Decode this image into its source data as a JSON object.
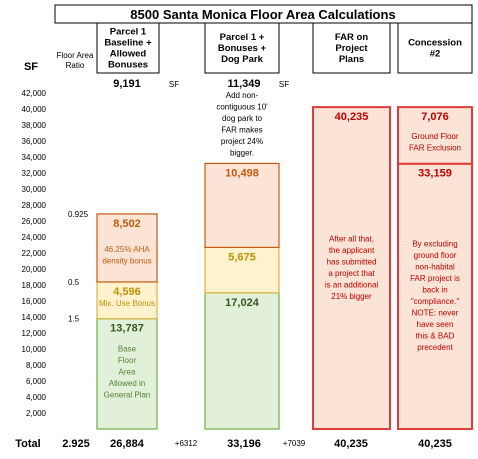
{
  "title": "8500 Santa Monica Floor Area Calculations",
  "headers": {
    "sf": "SF",
    "far_ratio": [
      "Floor Area",
      "Ratio"
    ],
    "col1": [
      "Parcel 1",
      "Baseline +",
      "Allowed",
      "Bonuses"
    ],
    "col2": [
      "Parcel 1 +",
      "Bonuses +",
      "Dog Park"
    ],
    "col3": [
      "FAR on",
      "Project",
      "Plans"
    ],
    "col4": [
      "Concession",
      "#2"
    ]
  },
  "top_values": {
    "col1": "9,191",
    "col2": "11,349",
    "unit": "SF"
  },
  "chart_data": {
    "type": "bar",
    "stacked": true,
    "ylim": [
      0,
      42000
    ],
    "yticks": [
      2000,
      4000,
      6000,
      8000,
      10000,
      12000,
      14000,
      16000,
      18000,
      20000,
      22000,
      24000,
      26000,
      28000,
      30000,
      32000,
      34000,
      36000,
      38000,
      40000,
      42000
    ],
    "ytick_labels": [
      "2,000",
      "4,000",
      "6,000",
      "8,000",
      "10,000",
      "12,000",
      "14,000",
      "16,000",
      "18,000",
      "20,000",
      "22,000",
      "24,000",
      "26,000",
      "28,000",
      "30,000",
      "32,000",
      "34,000",
      "36,000",
      "38,000",
      "40,000",
      "42,000"
    ],
    "columns": [
      {
        "id": "col1",
        "segments": [
          {
            "value": 13787,
            "label": "13,787",
            "note": [
              "Base",
              "Floor",
              "Area",
              "Allowed in",
              "General Plan"
            ],
            "fill": "#e2efd9",
            "stroke": "#70ad47",
            "label_color": "#375623",
            "note_color": "#548235"
          },
          {
            "value": 4596,
            "label": "4,596",
            "note": [
              "Mix. Use Bonus"
            ],
            "fill": "#fff2cc",
            "stroke": "#e0b43c",
            "label_color": "#bf9000",
            "note_color": "#bf9000"
          },
          {
            "value": 8502,
            "label": "8,502",
            "note": [
              "46.25% AHA",
              "density bonus"
            ],
            "fill": "#fbe4d5",
            "stroke": "#c55a11",
            "label_color": "#c55a11",
            "note_color": "#c55a11"
          }
        ]
      },
      {
        "id": "col2",
        "segments": [
          {
            "value": 17024,
            "label": "17,024",
            "fill": "#e2efd9",
            "stroke": "#70ad47",
            "label_color": "#375623"
          },
          {
            "value": 5675,
            "label": "5,675",
            "fill": "#fff2cc",
            "stroke": "#e0b43c",
            "label_color": "#bf9000"
          },
          {
            "value": 10498,
            "label": "10,498",
            "fill": "#fbe4d5",
            "stroke": "#c55a11",
            "label_color": "#c55a11"
          }
        ],
        "note_above": [
          "Add non-",
          "contiguous 10'",
          "dog park to",
          "FAR makes",
          "project 24%",
          "bigger."
        ]
      },
      {
        "id": "col3",
        "segments": [
          {
            "value": 40235,
            "label": "40,235",
            "note": [
              "After all that,",
              "the applicant",
              "has submitted",
              "a project that",
              "is an additional",
              "21% bigger"
            ],
            "fill": "#fbe4d5",
            "stroke": "#e03c3c",
            "label_color": "#c00000",
            "note_color": "#c00000"
          }
        ]
      },
      {
        "id": "col4",
        "segments": [
          {
            "value": 33159,
            "label": "33,159",
            "note": [
              "By excluding",
              "ground floor",
              "non-habital",
              "FAR project is",
              "back in",
              "\"compliance.\"",
              "NOTE: never",
              "have seen",
              "this & BAD",
              "precedent"
            ],
            "fill": "#fbe4d5",
            "stroke": "#e03c3c",
            "label_color": "#c00000",
            "note_color": "#c00000"
          },
          {
            "value": 7076,
            "label": "7,076",
            "note": [
              "Ground Floor",
              "FAR Exclusion"
            ],
            "fill": "#fbe4d5",
            "stroke": "#e03c3c",
            "label_color": "#c00000",
            "note_color": "#c00000"
          }
        ]
      }
    ],
    "far_ratios": [
      {
        "label": "1.5",
        "at": 13787
      },
      {
        "label": "0.5",
        "at": 18383
      },
      {
        "label": "0.925",
        "at": 26885
      }
    ],
    "totals": {
      "label": "Total",
      "ratio": "2.925",
      "values": [
        "26,884",
        "33,196",
        "40,235",
        "40,235"
      ],
      "increments": [
        "+6312",
        "+7039"
      ]
    }
  }
}
